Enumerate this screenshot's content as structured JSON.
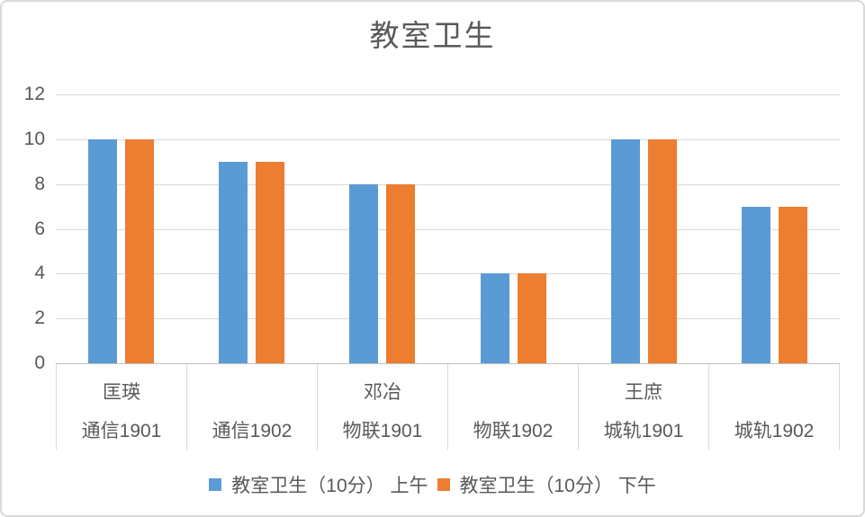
{
  "chart_data": {
    "type": "bar",
    "title": "教室卫生",
    "categories": [
      "通信1901",
      "通信1902",
      "物联1901",
      "物联1902",
      "城轨1901",
      "城轨1902"
    ],
    "category_groups": [
      "匡瑛",
      "",
      "邓冶",
      "",
      "王庶",
      ""
    ],
    "series": [
      {
        "name": "教室卫生（10分） 上午",
        "color": "#5B9BD5",
        "values": [
          10,
          9,
          8,
          4,
          10,
          7
        ]
      },
      {
        "name": "教室卫生（10分） 下午",
        "color": "#ED7D31",
        "values": [
          10,
          9,
          8,
          4,
          10,
          7
        ]
      }
    ],
    "xlabel": "",
    "ylabel": "",
    "ylim": [
      0,
      12
    ],
    "y_ticks": [
      0,
      2,
      4,
      6,
      8,
      10,
      12
    ],
    "grid": true,
    "legend_position": "bottom"
  },
  "colors": {
    "series1": "#5B9BD5",
    "series2": "#ED7D31",
    "gridline": "#D9D9D9",
    "axis_line": "#C0C0C0",
    "text": "#595959",
    "frame_border": "#D9D9D9",
    "background": "#FFFFFF"
  }
}
